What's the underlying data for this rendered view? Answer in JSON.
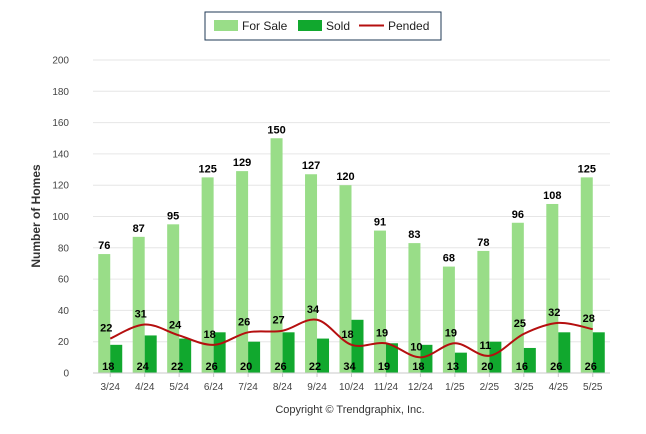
{
  "chart_data": {
    "type": "bar",
    "categories": [
      "3/24",
      "4/24",
      "5/24",
      "6/24",
      "7/24",
      "8/24",
      "9/24",
      "10/24",
      "11/24",
      "12/24",
      "1/25",
      "2/25",
      "3/25",
      "4/25",
      "5/25"
    ],
    "series": [
      {
        "name": "For Sale",
        "type": "bar",
        "color": "#99dd88",
        "values": [
          76,
          87,
          95,
          125,
          129,
          150,
          127,
          120,
          91,
          83,
          68,
          78,
          96,
          108,
          125
        ]
      },
      {
        "name": "Sold",
        "type": "bar",
        "color": "#11a82e",
        "values": [
          18,
          24,
          22,
          26,
          20,
          26,
          22,
          34,
          19,
          18,
          13,
          20,
          16,
          26,
          26
        ]
      },
      {
        "name": "Pended",
        "type": "line",
        "color": "#b50f0f",
        "values": [
          22,
          31,
          24,
          18,
          26,
          27,
          34,
          18,
          19,
          10,
          19,
          11,
          25,
          32,
          28
        ]
      }
    ],
    "ylabel": "Number of Homes",
    "xlabel": "",
    "ylim": [
      0,
      200
    ],
    "yticks": [
      0,
      20,
      40,
      60,
      80,
      100,
      120,
      140,
      160,
      180,
      200
    ],
    "grid": true,
    "legend_position": "top-center"
  },
  "footer": "Copyright © Trendgraphix, Inc."
}
